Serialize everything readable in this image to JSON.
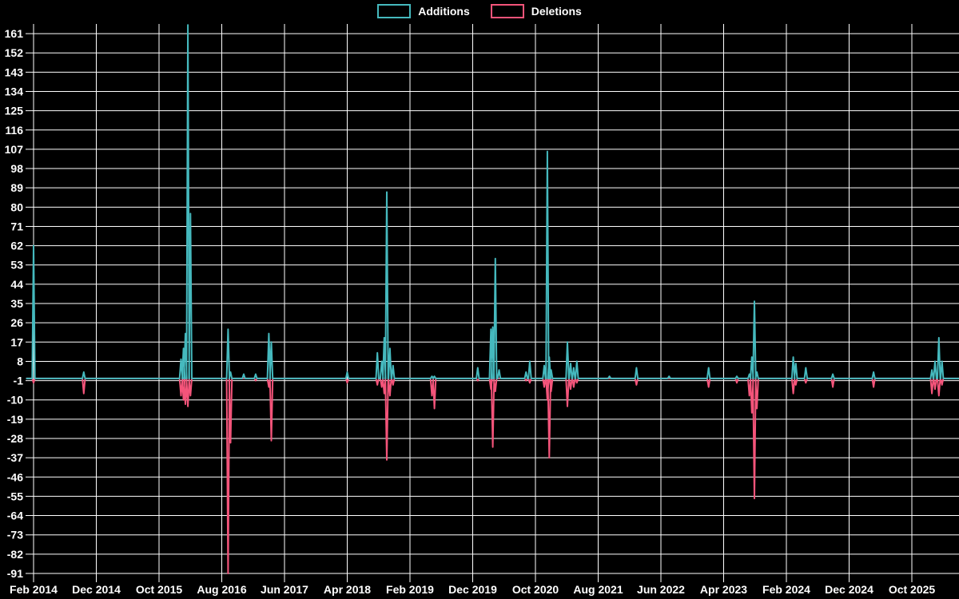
{
  "chart_data": {
    "type": "line",
    "title": "",
    "legend": [
      "Additions",
      "Deletions"
    ],
    "colors": {
      "background": "#000000",
      "grid": "#ffffff",
      "text": "#ffffff",
      "additions": "#45b9be",
      "deletions": "#f4547a"
    },
    "x_axis": {
      "tick_labels": [
        "Feb 2014",
        "Dec 2014",
        "Oct 2015",
        "Aug 2016",
        "Jun 2017",
        "Apr 2018",
        "Feb 2019",
        "Dec 2019",
        "Oct 2020",
        "Aug 2021",
        "Jun 2022",
        "Apr 2023",
        "Feb 2024",
        "Dec 2024",
        "Oct 2025"
      ],
      "tick_interval_months": 10
    },
    "y_axis": {
      "tick_labels": [
        161,
        152,
        143,
        134,
        125,
        116,
        107,
        98,
        89,
        80,
        71,
        62,
        53,
        44,
        35,
        26,
        17,
        8,
        -1,
        -10,
        -19,
        -28,
        -37,
        -46,
        -55,
        -64,
        -73,
        -82,
        -91
      ],
      "min": -91,
      "max": 161,
      "step": 9
    },
    "baseline_value": 0,
    "series": [
      {
        "name": "Additions",
        "color": "#45b9be",
        "points": [
          [
            0,
            62
          ],
          [
            8,
            3
          ],
          [
            23.5,
            9
          ],
          [
            23.9,
            14
          ],
          [
            24.2,
            21
          ],
          [
            24.6,
            165
          ],
          [
            25,
            77
          ],
          [
            31,
            23
          ],
          [
            31.4,
            3
          ],
          [
            33.5,
            2
          ],
          [
            35.4,
            2
          ],
          [
            37.5,
            21
          ],
          [
            37.9,
            17
          ],
          [
            50,
            3
          ],
          [
            54.8,
            12
          ],
          [
            55.5,
            8
          ],
          [
            55.9,
            19
          ],
          [
            56.3,
            87
          ],
          [
            56.8,
            14
          ],
          [
            57.3,
            6
          ],
          [
            63.5,
            1
          ],
          [
            63.9,
            1
          ],
          [
            70.8,
            5
          ],
          [
            72.9,
            23
          ],
          [
            73.2,
            24
          ],
          [
            73.6,
            56
          ],
          [
            74.2,
            4
          ],
          [
            78.5,
            3
          ],
          [
            79.1,
            8
          ],
          [
            81.4,
            6
          ],
          [
            81.9,
            106
          ],
          [
            82.2,
            10
          ],
          [
            82.5,
            4
          ],
          [
            85.1,
            17
          ],
          [
            85.6,
            7
          ],
          [
            86.1,
            5
          ],
          [
            86.6,
            8
          ],
          [
            91.8,
            1
          ],
          [
            96.1,
            5
          ],
          [
            101.3,
            1
          ],
          [
            107.6,
            5
          ],
          [
            112.1,
            1
          ],
          [
            114.1,
            2
          ],
          [
            114.5,
            10
          ],
          [
            114.9,
            36
          ],
          [
            115.3,
            3
          ],
          [
            121.1,
            10
          ],
          [
            121.5,
            7
          ],
          [
            123.1,
            5
          ],
          [
            127.4,
            2
          ],
          [
            133.9,
            3
          ],
          [
            143.2,
            4
          ],
          [
            143.7,
            8
          ],
          [
            144.3,
            19
          ],
          [
            144.8,
            8
          ]
        ]
      },
      {
        "name": "Deletions",
        "color": "#f4547a",
        "points": [
          [
            0,
            -2
          ],
          [
            8,
            -7
          ],
          [
            23.5,
            -8
          ],
          [
            23.9,
            -10
          ],
          [
            24.2,
            -12
          ],
          [
            24.6,
            -13
          ],
          [
            25,
            -8
          ],
          [
            31,
            -91
          ],
          [
            31.4,
            -30
          ],
          [
            35.4,
            -1
          ],
          [
            37.5,
            -4
          ],
          [
            37.9,
            -29
          ],
          [
            50,
            -2
          ],
          [
            54.8,
            -3
          ],
          [
            55.5,
            -4
          ],
          [
            55.9,
            -7
          ],
          [
            56.3,
            -38
          ],
          [
            56.8,
            -8
          ],
          [
            57.3,
            -3
          ],
          [
            63.5,
            -8
          ],
          [
            63.9,
            -14
          ],
          [
            70.8,
            -1
          ],
          [
            72.9,
            -5
          ],
          [
            73.2,
            -32
          ],
          [
            73.6,
            -6
          ],
          [
            78.5,
            -1
          ],
          [
            79.1,
            -2
          ],
          [
            81.4,
            -4
          ],
          [
            81.9,
            -10
          ],
          [
            82.2,
            -37
          ],
          [
            82.5,
            -6
          ],
          [
            85.1,
            -13
          ],
          [
            85.6,
            -5
          ],
          [
            86.1,
            -4
          ],
          [
            86.6,
            -2
          ],
          [
            96.1,
            -3
          ],
          [
            107.6,
            -4
          ],
          [
            112.1,
            -2
          ],
          [
            114.1,
            -8
          ],
          [
            114.5,
            -16
          ],
          [
            114.9,
            -56
          ],
          [
            115.3,
            -14
          ],
          [
            121.1,
            -7
          ],
          [
            121.5,
            -3
          ],
          [
            123.1,
            -2
          ],
          [
            127.4,
            -4
          ],
          [
            133.9,
            -4
          ],
          [
            143.2,
            -7
          ],
          [
            143.7,
            -5
          ],
          [
            144.3,
            -8
          ],
          [
            144.8,
            -3
          ]
        ]
      }
    ]
  }
}
